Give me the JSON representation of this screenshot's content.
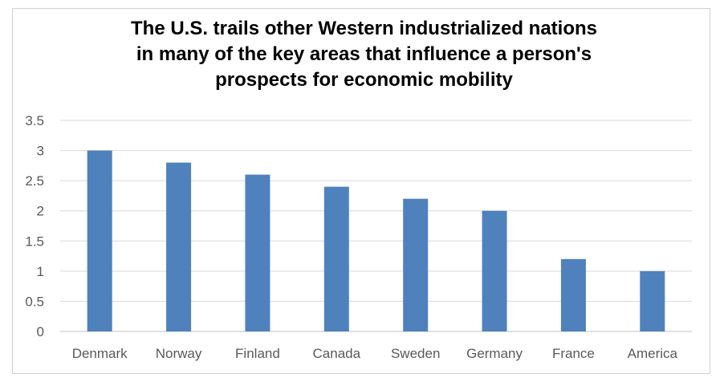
{
  "chart_data": {
    "type": "bar",
    "title_lines": [
      "The U.S. trails other Western industrialized nations",
      "in many of the key areas that influence a person's",
      "prospects for economic mobility"
    ],
    "categories": [
      "Denmark",
      "Norway",
      "Finland",
      "Canada",
      "Sweden",
      "Germany",
      "France",
      "America"
    ],
    "values": [
      3.0,
      2.8,
      2.6,
      2.4,
      2.2,
      2.0,
      1.2,
      1.0
    ],
    "yticks": [
      "0",
      "0.5",
      "1",
      "1.5",
      "2",
      "2.5",
      "3",
      "3.5"
    ],
    "ylim": [
      0,
      3.5
    ],
    "grid": true,
    "legend": "none",
    "bar_color": "#4f81bd",
    "grid_color": "#d9d9d9",
    "axis_color": "#bfbfbf"
  }
}
